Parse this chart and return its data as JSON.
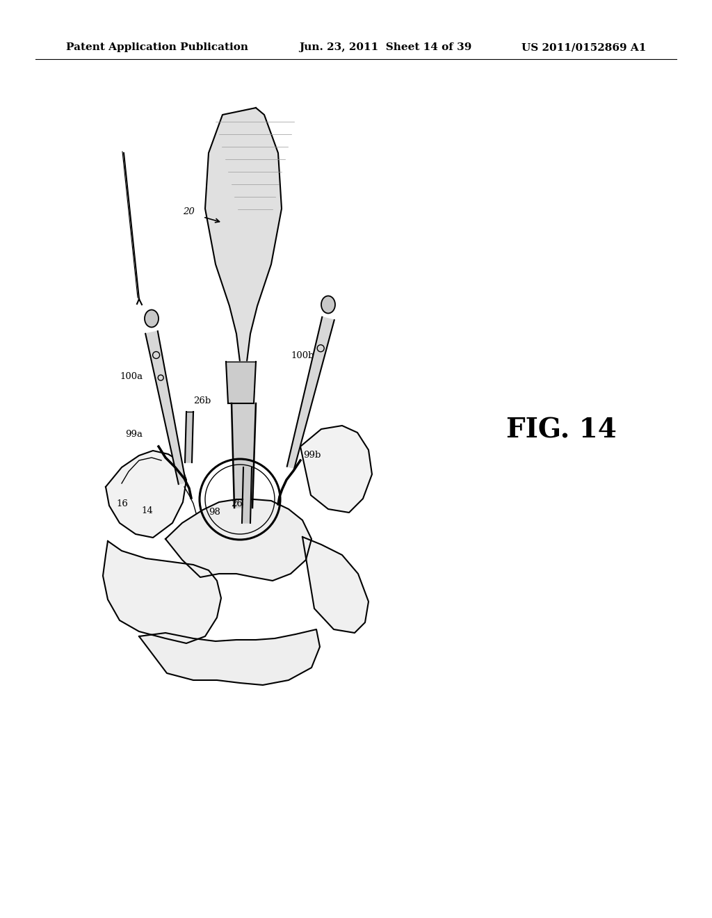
{
  "background_color": "#ffffff",
  "header_left": "Patent Application Publication",
  "header_center": "Jun. 23, 2011  Sheet 14 of 39",
  "header_right": "US 2011/0152869 A1",
  "figure_label": "FIG. 14",
  "line_color": "#000000",
  "text_color": "#000000",
  "header_fontsize": 11,
  "label_fontsize": 9.5,
  "fig_label_fontsize": 28
}
